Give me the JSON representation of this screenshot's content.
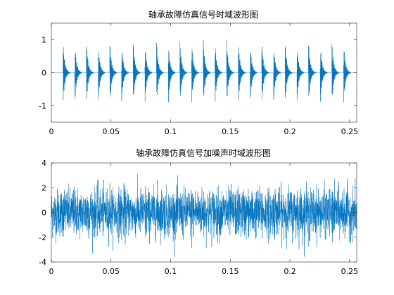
{
  "chart_data": [
    {
      "type": "line",
      "title": "轴承故障仿真信号时域波形图",
      "xlabel": "",
      "ylabel": "",
      "xlim": [
        0,
        0.256
      ],
      "ylim": [
        -1.5,
        1.5
      ],
      "xticks": [
        0,
        0.05,
        0.1,
        0.15,
        0.2,
        0.25
      ],
      "xtick_labels": [
        "0",
        "0.05",
        "0.1",
        "0.15",
        "0.2",
        "0.25"
      ],
      "yticks": [
        -1,
        0,
        1
      ],
      "ytick_labels": [
        "-1",
        "0",
        "1"
      ],
      "grid": false,
      "color": "#0072BD",
      "signal": {
        "kind": "periodic impulse train (decaying resonance)",
        "impact_times": [
          0.0098,
          0.0196,
          0.0294,
          0.0392,
          0.049,
          0.0588,
          0.0686,
          0.0784,
          0.0882,
          0.098,
          0.1078,
          0.1176,
          0.1274,
          0.1372,
          0.147,
          0.1568,
          0.1666,
          0.1764,
          0.1862,
          0.196,
          0.2058,
          0.2156,
          0.2254,
          0.2352,
          0.245
        ],
        "peak_amplitude": 1.0,
        "impact_period": 0.0098
      }
    },
    {
      "type": "line",
      "title": "轴承故障仿真信号加噪声时域波形图",
      "xlabel": "",
      "ylabel": "",
      "xlim": [
        0,
        0.256
      ],
      "ylim": [
        -4,
        4
      ],
      "xticks": [
        0,
        0.05,
        0.1,
        0.15,
        0.2,
        0.25
      ],
      "xtick_labels": [
        "0",
        "0.05",
        "0.1",
        "0.15",
        "0.2",
        "0.25"
      ],
      "yticks": [
        -4,
        -2,
        0,
        2,
        4
      ],
      "ytick_labels": [
        "-4",
        "-2",
        "0",
        "2",
        "4"
      ],
      "grid": false,
      "color": "#0072BD",
      "signal": {
        "kind": "impulse train plus white noise",
        "noise_peak_range": [
          -3.6,
          3.3
        ]
      }
    }
  ]
}
